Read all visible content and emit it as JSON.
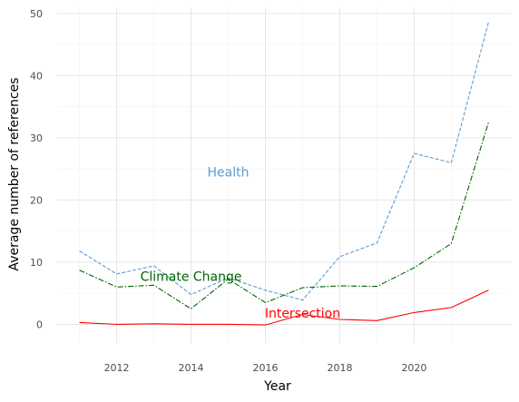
{
  "chart_data": {
    "type": "line",
    "xlabel": "Year",
    "ylabel": "Average number of references",
    "xlim": [
      2010.4,
      2022.6
    ],
    "ylim": [
      -3,
      51
    ],
    "x_ticks": [
      2012,
      2014,
      2016,
      2018,
      2020
    ],
    "y_ticks": [
      0,
      10,
      20,
      30,
      40,
      50
    ],
    "grid": true,
    "x": [
      2011,
      2012,
      2013,
      2014,
      2015,
      2016,
      2017,
      2018,
      2019,
      2020,
      2021,
      2022
    ],
    "series": [
      {
        "name": "Health",
        "color": "#5b9bd5",
        "dash": "dashed",
        "label_at": [
          2015,
          24.5
        ],
        "values": [
          11.8,
          8.1,
          9.4,
          4.8,
          7.5,
          5.5,
          3.9,
          10.9,
          13.1,
          27.5,
          26.0,
          48.6
        ]
      },
      {
        "name": "Climate Change",
        "color": "#006400",
        "dash": "dashdot",
        "label_at": [
          2014,
          7.7
        ],
        "values": [
          8.7,
          6.0,
          6.3,
          2.5,
          7.3,
          3.5,
          5.9,
          6.2,
          6.1,
          9.1,
          13.0,
          32.5
        ]
      },
      {
        "name": "Intersection",
        "color": "#ff0000",
        "dash": "solid",
        "label_at": [
          2017,
          1.8
        ],
        "values": [
          0.3,
          0.0,
          0.1,
          0.0,
          0.0,
          -0.1,
          1.6,
          0.8,
          0.6,
          1.9,
          2.7,
          5.5
        ]
      }
    ]
  }
}
